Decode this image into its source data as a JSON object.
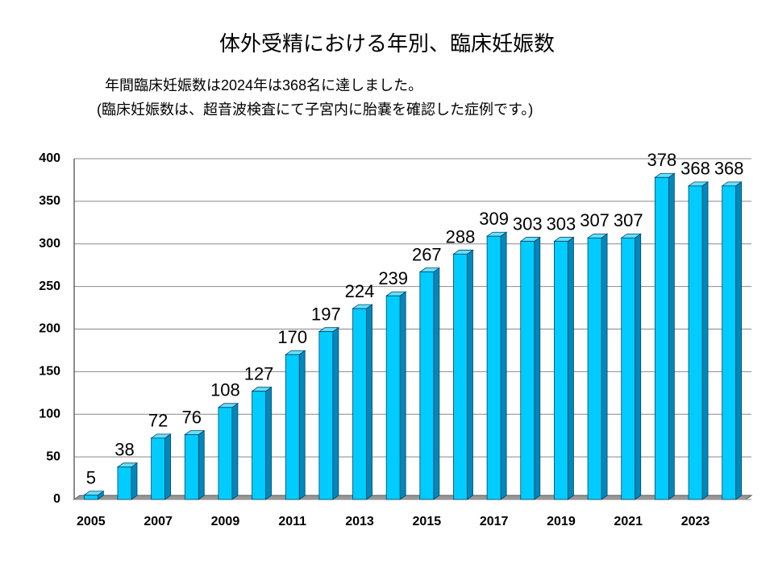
{
  "chart_data": {
    "type": "bar3d",
    "title": "体外受精における年別、臨床妊娠数",
    "subtitle": [
      "年間臨床妊娠数は2024年は368名に達しました。",
      "(臨床妊娠数は、超音波検査にて子宮内に胎嚢を確認した症例です。)"
    ],
    "categories": [
      "2005",
      null,
      "2007",
      null,
      "2009",
      null,
      "2011",
      null,
      "2013",
      null,
      "2015",
      null,
      "2017",
      null,
      "2019",
      null,
      "2021",
      null,
      "2023",
      null
    ],
    "values": [
      5,
      38,
      72,
      76,
      108,
      127,
      170,
      197,
      224,
      239,
      267,
      288,
      309,
      303,
      303,
      307,
      307,
      378,
      368,
      368
    ],
    "color": "#00ccff",
    "ylim": [
      0,
      400
    ],
    "yticks": [
      0,
      50,
      100,
      150,
      200,
      250,
      300,
      350,
      400
    ],
    "grid": true
  }
}
